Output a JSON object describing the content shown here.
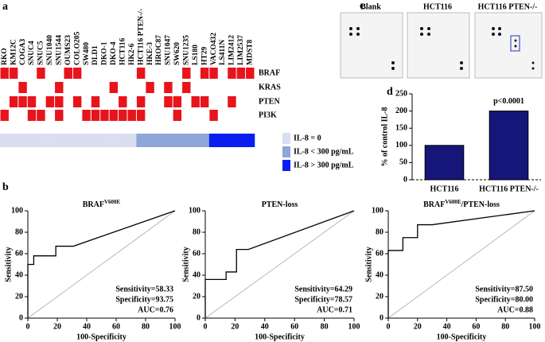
{
  "panel_labels": [
    "a",
    "b",
    "c",
    "d"
  ],
  "mutation_matrix": {
    "cell_lines": [
      "RKO",
      "KM12C",
      "COGA3",
      "SNUC4",
      "SNUC5",
      "SNU1040",
      "SNU1544",
      "OUMS23",
      "COLO205",
      "SW480",
      "DLD1",
      "DKO-1",
      "DKO-4",
      "HCT116",
      "HK2-6",
      "HCT116 PTEN-/-",
      "HKE-3",
      "HROC87",
      "SNU1047",
      "SW620",
      "SNU1235",
      "LS180",
      "HT29",
      "VACO432",
      "LS411N",
      "LIM2412",
      "LIM2537",
      "MDST8"
    ],
    "rows": [
      {
        "gene": "BRAF",
        "mutated": [
          1,
          1,
          0,
          0,
          1,
          0,
          0,
          1,
          1,
          0,
          0,
          0,
          0,
          0,
          0,
          1,
          0,
          0,
          0,
          0,
          1,
          0,
          1,
          1,
          0,
          1,
          1,
          1
        ]
      },
      {
        "gene": "KRAS",
        "mutated": [
          0,
          0,
          1,
          0,
          0,
          0,
          1,
          0,
          0,
          0,
          0,
          0,
          1,
          0,
          0,
          0,
          1,
          0,
          1,
          0,
          1,
          0,
          0,
          0,
          0,
          0,
          0,
          0
        ]
      },
      {
        "gene": "PTEN",
        "mutated": [
          0,
          1,
          1,
          1,
          0,
          1,
          1,
          0,
          1,
          0,
          1,
          0,
          0,
          1,
          0,
          1,
          0,
          0,
          1,
          1,
          0,
          1,
          1,
          0,
          0,
          1,
          0,
          0
        ]
      },
      {
        "gene": "PI3K",
        "mutated": [
          1,
          0,
          0,
          1,
          1,
          0,
          1,
          0,
          0,
          1,
          1,
          1,
          1,
          1,
          1,
          1,
          0,
          0,
          0,
          1,
          0,
          0,
          0,
          1,
          0,
          0,
          0,
          0
        ]
      }
    ],
    "il8_level": [
      0,
      0,
      0,
      0,
      0,
      0,
      0,
      0,
      0,
      0,
      0,
      0,
      0,
      0,
      0,
      1,
      1,
      1,
      1,
      1,
      1,
      1,
      1,
      2,
      2,
      2,
      2,
      2
    ],
    "mutated_color": "#e8141c",
    "legend": [
      {
        "label": "IL-8 = 0",
        "color": "#d9dff0"
      },
      {
        "label": "IL-8 < 300 pg/mL",
        "color": "#8ea7d8"
      },
      {
        "label": "IL-8 > 300 pg/mL",
        "color": "#0a1ef0"
      }
    ]
  },
  "blot": {
    "titles": [
      "Blank",
      "HCT116",
      "HCT116 PTEN-/-"
    ]
  },
  "chart_data": [
    {
      "type": "bar",
      "categories": [
        "HCT116",
        "HCT116 PTEN-/-"
      ],
      "values": [
        100,
        200
      ],
      "color": "#15157a",
      "y_label": "% of control IL-8",
      "ylim": [
        0,
        250
      ],
      "yticks": [
        0,
        50,
        100,
        150,
        200,
        250
      ],
      "annotation": "p<0.0001"
    },
    {
      "type": "line",
      "title_parts": [
        {
          "text": "BRAF"
        },
        {
          "text": "V600E",
          "sup": true
        }
      ],
      "x": [
        0,
        0,
        4,
        4,
        19,
        19,
        31,
        100
      ],
      "values": [
        0,
        50,
        50,
        58,
        58,
        67,
        67,
        100
      ],
      "color": "#000000",
      "x_label": "100-Specificity",
      "y_label": "Sensitivity",
      "xlim": [
        0,
        100
      ],
      "ylim": [
        0,
        100
      ],
      "xticks": [
        0,
        20,
        40,
        60,
        80,
        100
      ],
      "yticks": [
        0,
        20,
        40,
        60,
        80,
        100
      ],
      "annotations": [
        "Sensitivity=58.33",
        "Specificity=93.75",
        "AUC=0.76"
      ]
    },
    {
      "type": "line",
      "title_parts": [
        {
          "text": "PTEN-loss"
        }
      ],
      "x": [
        0,
        0,
        14,
        14,
        21,
        21,
        29,
        100
      ],
      "values": [
        0,
        36,
        36,
        43,
        43,
        64,
        64,
        100
      ],
      "color": "#000000",
      "x_label": "100-Specificity",
      "y_label": "Sensitivity",
      "xlim": [
        0,
        100
      ],
      "ylim": [
        0,
        100
      ],
      "xticks": [
        0,
        20,
        40,
        60,
        80,
        100
      ],
      "yticks": [
        0,
        20,
        40,
        60,
        80,
        100
      ],
      "annotations": [
        "Sensitivity=64.29",
        "Specificity=78.57",
        "AUC=0.71"
      ]
    },
    {
      "type": "line",
      "title_parts": [
        {
          "text": "BRAF"
        },
        {
          "text": "V600E",
          "sup": true
        },
        {
          "text": "/PTEN-loss"
        }
      ],
      "x": [
        0,
        0,
        10,
        10,
        20,
        20,
        30,
        100
      ],
      "values": [
        0,
        63,
        63,
        75,
        75,
        87,
        87,
        100
      ],
      "color": "#000000",
      "x_label": "100-Specificity",
      "y_label": "Sensitivity",
      "xlim": [
        0,
        100
      ],
      "ylim": [
        0,
        100
      ],
      "xticks": [
        0,
        20,
        40,
        60,
        80,
        100
      ],
      "yticks": [
        0,
        20,
        40,
        60,
        80,
        100
      ],
      "annotations": [
        "Sensitivity=87.50",
        "Specificity=80.00",
        "AUC=0.88"
      ]
    }
  ]
}
